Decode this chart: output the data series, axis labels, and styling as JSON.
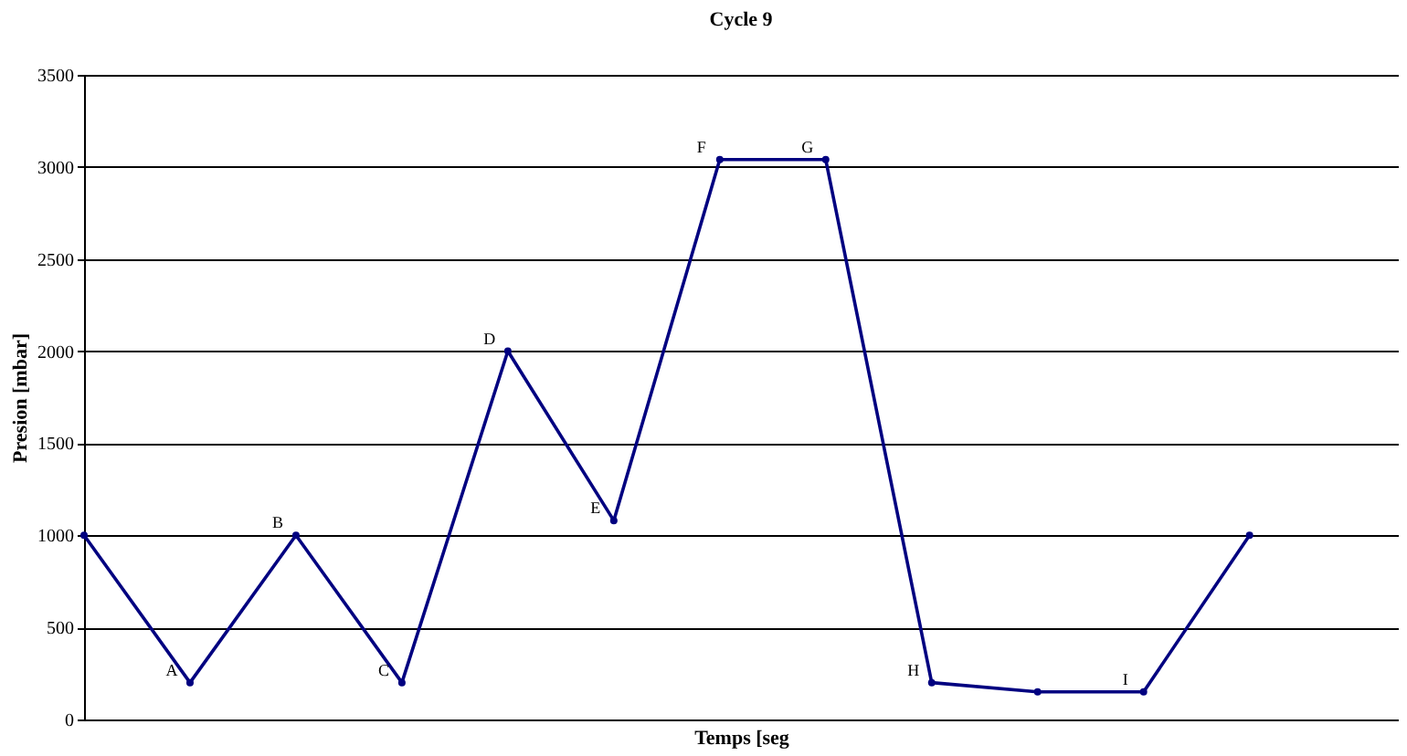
{
  "chart_data": {
    "type": "line",
    "title": "Cycle 9",
    "xlabel": "Temps [seg",
    "ylabel": "Presion [mbar]",
    "categories": [
      null,
      null,
      null,
      null,
      null,
      null,
      null,
      null,
      null,
      null,
      null,
      null
    ],
    "series": [
      {
        "color": "#000080",
        "values": [
          1000,
          200,
          1000,
          200,
          2000,
          1080,
          3040,
          3040,
          200,
          150,
          150,
          1000
        ]
      }
    ],
    "ylim": [
      0,
      3500
    ],
    "yticks": [
      0,
      500,
      1000,
      1500,
      2000,
      2500,
      3000,
      3500
    ],
    "grid": "y",
    "marker": "circle",
    "line_style": "solid",
    "tick_labels": "y",
    "legend": false,
    "annotations": [
      "A",
      "B",
      "C",
      "D",
      "E",
      "F",
      "G",
      "H",
      "I"
    ]
  }
}
